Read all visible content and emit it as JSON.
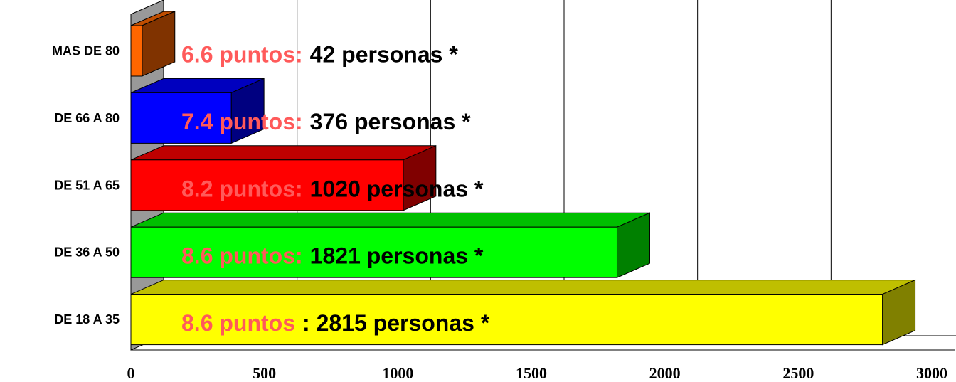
{
  "chart_data": {
    "type": "bar3d",
    "categories": [
      "MAS DE 80",
      "DE 66 A 80",
      "DE 51 A 65",
      "DE 36 A 50",
      "DE 18 A 35"
    ],
    "values": [
      42,
      376,
      1020,
      1821,
      2815
    ],
    "value_labels": [
      "42 personas *",
      "376 personas *",
      "1020 personas *",
      "1821 personas *",
      ": 2815 personas *"
    ],
    "score_labels": [
      "6.6 puntos:",
      "7.4 puntos:",
      "8.2 puntos:",
      "8.6 puntos:",
      "8.6 puntos"
    ],
    "colors": [
      "#ff6600",
      "#0000ff",
      "#ff0000",
      "#00ff00",
      "#ffff00"
    ],
    "xlim": [
      0,
      3000
    ],
    "xticks": [
      0,
      500,
      1000,
      1500,
      2000,
      2500,
      3000
    ],
    "grid": true
  }
}
